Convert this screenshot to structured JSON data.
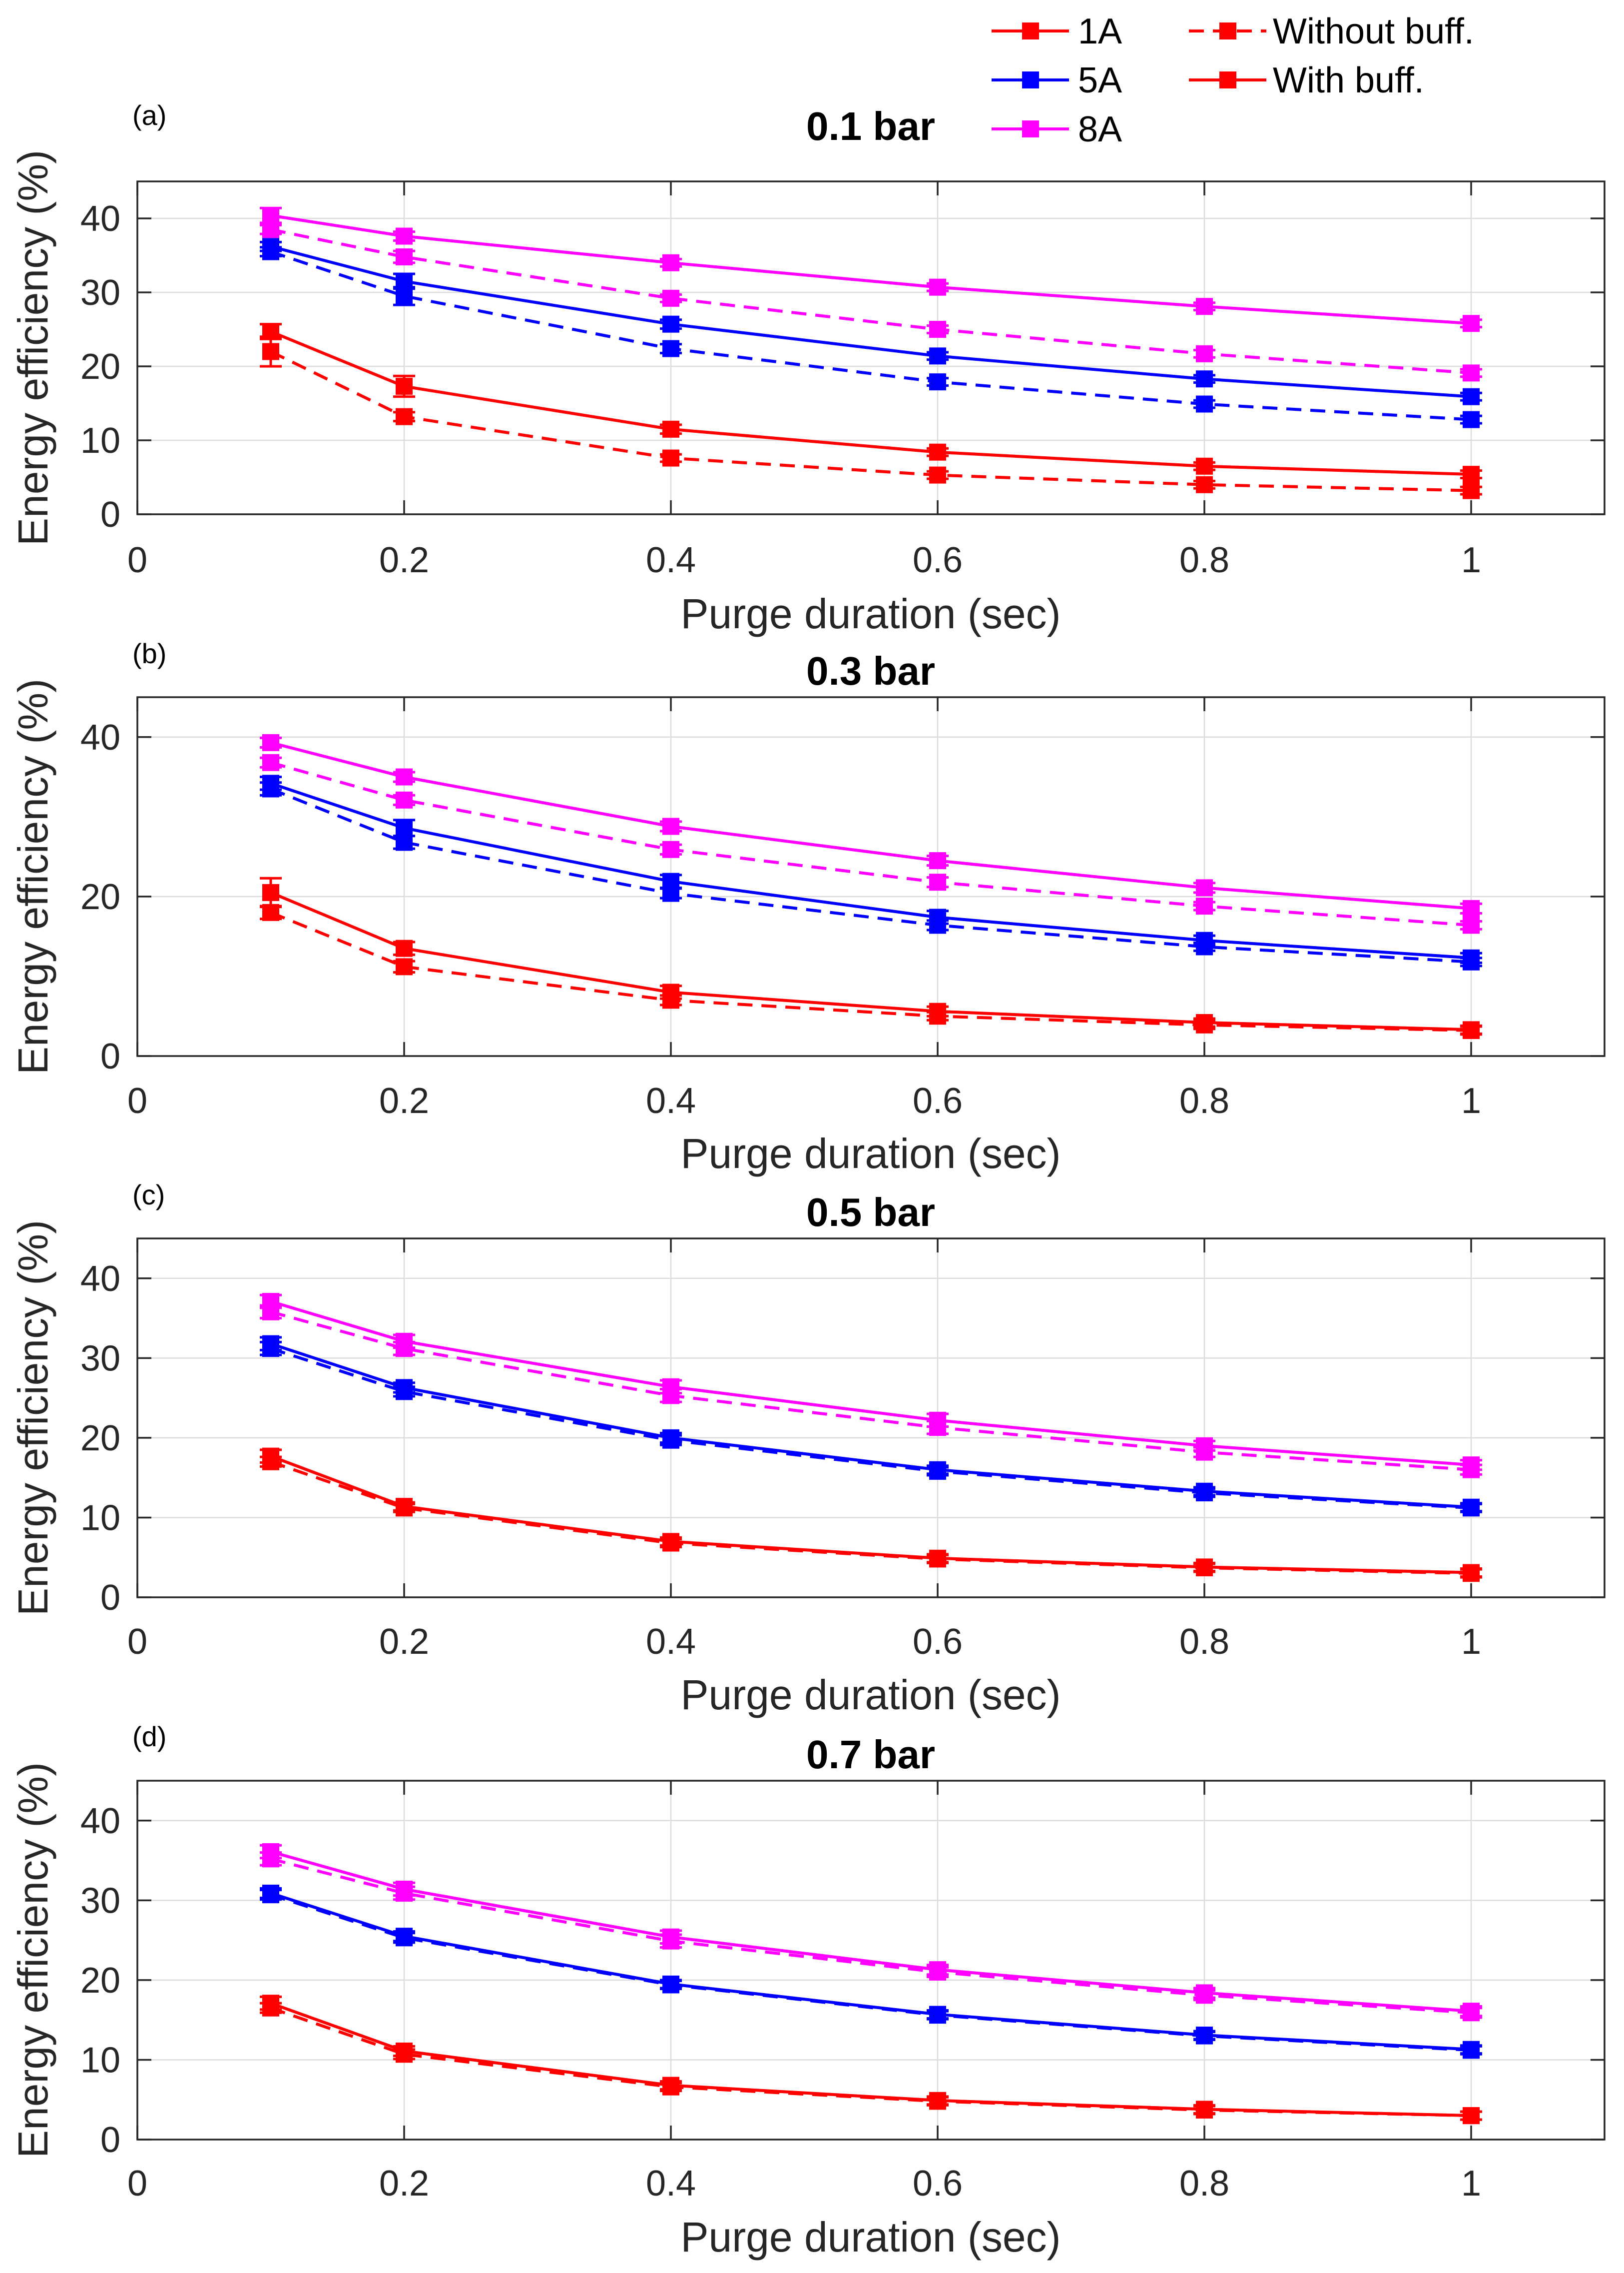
{
  "legend": {
    "current_entries": [
      {
        "label": "1A",
        "color": "#ff0000"
      },
      {
        "label": "5A",
        "color": "#0000ff"
      },
      {
        "label": "8A",
        "color": "#ff00ff"
      }
    ],
    "style_entries": [
      {
        "label": "Without buff.",
        "dash": true
      },
      {
        "label": "With buff.",
        "dash": false
      }
    ]
  },
  "chart_data": [
    {
      "type": "line",
      "panel_label": "(a)",
      "title": "0.1 bar",
      "xlabel": "Purge duration (sec)",
      "ylabel": "Energy efficiency (%)",
      "xlim": [
        0,
        1.1
      ],
      "ylim": [
        0,
        45
      ],
      "xticks": [
        0,
        0.2,
        0.4,
        0.6,
        0.8,
        1
      ],
      "xtick_labels": [
        "0",
        "0.2",
        "0.4",
        "0.6",
        "0.8",
        "1"
      ],
      "yticks": [
        0,
        10,
        20,
        30,
        40
      ],
      "ytick_labels": [
        "0",
        "10",
        "20",
        "30",
        "40"
      ],
      "grid": true,
      "x": [
        0.1,
        0.2,
        0.4,
        0.6,
        0.8,
        1.0
      ],
      "series": [
        {
          "name": "1A With buff.",
          "current": "1A",
          "buffer": "with",
          "color": "#ff0000",
          "values": [
            24.7,
            17.3,
            11.5,
            8.4,
            6.5,
            5.4
          ],
          "errors": [
            1.0,
            1.4,
            0.6,
            0.5,
            0.5,
            0.5
          ]
        },
        {
          "name": "1A Without buff.",
          "current": "1A",
          "buffer": "without",
          "color": "#ff0000",
          "values": [
            22.0,
            13.2,
            7.6,
            5.3,
            4.0,
            3.2
          ],
          "errors": [
            2.0,
            0.6,
            0.5,
            0.5,
            0.5,
            0.5
          ]
        },
        {
          "name": "5A With buff.",
          "current": "5A",
          "buffer": "with",
          "color": "#0000ff",
          "values": [
            36.2,
            31.5,
            25.7,
            21.4,
            18.3,
            15.9
          ],
          "errors": [
            0.6,
            1.0,
            0.6,
            0.5,
            0.5,
            0.5
          ]
        },
        {
          "name": "5A Without buff.",
          "current": "5A",
          "buffer": "without",
          "color": "#0000ff",
          "values": [
            35.5,
            29.5,
            22.4,
            17.9,
            14.9,
            12.8
          ],
          "errors": [
            0.6,
            1.2,
            0.6,
            0.5,
            0.5,
            0.5
          ]
        },
        {
          "name": "8A With buff.",
          "current": "8A",
          "buffer": "with",
          "color": "#ff00ff",
          "values": [
            40.4,
            37.6,
            34.0,
            30.7,
            28.1,
            25.8
          ],
          "errors": [
            1.0,
            0.6,
            0.5,
            0.5,
            0.5,
            0.5
          ]
        },
        {
          "name": "8A Without buff.",
          "current": "8A",
          "buffer": "without",
          "color": "#ff00ff",
          "values": [
            38.5,
            34.8,
            29.2,
            25.0,
            21.7,
            19.1
          ],
          "errors": [
            0.6,
            0.8,
            0.5,
            0.5,
            0.5,
            0.5
          ]
        }
      ]
    },
    {
      "type": "line",
      "panel_label": "(b)",
      "title": "0.3 bar",
      "xlabel": "Purge duration (sec)",
      "ylabel": "Energy efficiency (%)",
      "xlim": [
        0,
        1.1
      ],
      "ylim": [
        0,
        45
      ],
      "xticks": [
        0,
        0.2,
        0.4,
        0.6,
        0.8,
        1
      ],
      "xtick_labels": [
        "0",
        "0.2",
        "0.4",
        "0.6",
        "0.8",
        "1"
      ],
      "yticks": [
        0,
        20,
        40
      ],
      "ytick_labels": [
        "0",
        "20",
        "40"
      ],
      "grid": true,
      "x": [
        0.1,
        0.2,
        0.4,
        0.6,
        0.8,
        1.0
      ],
      "series": [
        {
          "name": "1A With buff.",
          "current": "1A",
          "buffer": "with",
          "color": "#ff0000",
          "values": [
            20.5,
            13.5,
            8.0,
            5.6,
            4.2,
            3.3
          ],
          "errors": [
            1.8,
            0.8,
            0.8,
            0.6,
            0.5,
            0.5
          ]
        },
        {
          "name": "1A Without buff.",
          "current": "1A",
          "buffer": "without",
          "color": "#ff0000",
          "values": [
            18.0,
            11.2,
            7.0,
            5.0,
            3.9,
            3.2
          ],
          "errors": [
            0.8,
            0.7,
            0.6,
            0.5,
            0.5,
            0.5
          ]
        },
        {
          "name": "5A With buff.",
          "current": "5A",
          "buffer": "with",
          "color": "#0000ff",
          "values": [
            34.2,
            28.6,
            21.9,
            17.4,
            14.5,
            12.3
          ],
          "errors": [
            0.8,
            1.0,
            0.8,
            0.8,
            0.6,
            0.6
          ]
        },
        {
          "name": "5A Without buff.",
          "current": "5A",
          "buffer": "without",
          "color": "#0000ff",
          "values": [
            33.5,
            26.8,
            20.4,
            16.4,
            13.7,
            11.8
          ],
          "errors": [
            0.8,
            0.8,
            0.6,
            0.6,
            0.5,
            0.5
          ]
        },
        {
          "name": "8A With buff.",
          "current": "8A",
          "buffer": "with",
          "color": "#ff00ff",
          "values": [
            39.3,
            35.0,
            28.8,
            24.5,
            21.1,
            18.5
          ],
          "errors": [
            0.6,
            0.6,
            0.6,
            0.6,
            0.6,
            0.6
          ]
        },
        {
          "name": "8A Without buff.",
          "current": "8A",
          "buffer": "without",
          "color": "#ff00ff",
          "values": [
            36.8,
            32.1,
            25.9,
            21.8,
            18.8,
            16.4
          ],
          "errors": [
            0.6,
            0.6,
            0.6,
            0.6,
            0.5,
            0.5
          ]
        }
      ]
    },
    {
      "type": "line",
      "panel_label": "(c)",
      "title": "0.5 bar",
      "xlabel": "Purge duration (sec)",
      "ylabel": "Energy efficiency (%)",
      "xlim": [
        0,
        1.1
      ],
      "ylim": [
        0,
        45
      ],
      "xticks": [
        0,
        0.2,
        0.4,
        0.6,
        0.8,
        1
      ],
      "xtick_labels": [
        "0",
        "0.2",
        "0.4",
        "0.6",
        "0.8",
        "1"
      ],
      "yticks": [
        0,
        10,
        20,
        30,
        40
      ],
      "ytick_labels": [
        "0",
        "10",
        "20",
        "30",
        "40"
      ],
      "grid": true,
      "x": [
        0.1,
        0.2,
        0.4,
        0.6,
        0.8,
        1.0
      ],
      "series": [
        {
          "name": "1A With buff.",
          "current": "1A",
          "buffer": "with",
          "color": "#ff0000",
          "values": [
            17.7,
            11.4,
            7.0,
            4.9,
            3.8,
            3.1
          ],
          "errors": [
            0.8,
            0.5,
            0.5,
            0.5,
            0.5,
            0.5
          ]
        },
        {
          "name": "1A Without buff.",
          "current": "1A",
          "buffer": "without",
          "color": "#ff0000",
          "values": [
            17.0,
            11.2,
            6.8,
            4.8,
            3.7,
            3.0
          ],
          "errors": [
            0.6,
            0.5,
            0.5,
            0.5,
            0.5,
            0.5
          ]
        },
        {
          "name": "5A With buff.",
          "current": "5A",
          "buffer": "with",
          "color": "#0000ff",
          "values": [
            31.8,
            26.3,
            20.0,
            16.0,
            13.3,
            11.3
          ],
          "errors": [
            0.8,
            0.6,
            0.6,
            0.5,
            0.5,
            0.5
          ]
        },
        {
          "name": "5A Without buff.",
          "current": "5A",
          "buffer": "without",
          "color": "#0000ff",
          "values": [
            31.2,
            25.8,
            19.7,
            15.8,
            13.1,
            11.2
          ],
          "errors": [
            0.8,
            0.6,
            0.6,
            0.5,
            0.5,
            0.5
          ]
        },
        {
          "name": "8A With buff.",
          "current": "8A",
          "buffer": "with",
          "color": "#ff00ff",
          "values": [
            37.1,
            32.1,
            26.4,
            22.2,
            19.0,
            16.6
          ],
          "errors": [
            0.8,
            0.8,
            0.8,
            0.8,
            0.6,
            0.6
          ]
        },
        {
          "name": "8A Without buff.",
          "current": "8A",
          "buffer": "without",
          "color": "#ff00ff",
          "values": [
            35.8,
            31.2,
            25.3,
            21.3,
            18.2,
            16.0
          ],
          "errors": [
            0.8,
            0.8,
            0.8,
            0.8,
            0.6,
            0.6
          ]
        }
      ]
    },
    {
      "type": "line",
      "panel_label": "(d)",
      "title": "0.7 bar",
      "xlabel": "Purge duration (sec)",
      "ylabel": "Energy efficiency (%)",
      "xlim": [
        0,
        1.1
      ],
      "ylim": [
        0,
        45
      ],
      "xticks": [
        0,
        0.2,
        0.4,
        0.6,
        0.8,
        1
      ],
      "xtick_labels": [
        "0",
        "0.2",
        "0.4",
        "0.6",
        "0.8",
        "1"
      ],
      "yticks": [
        0,
        10,
        20,
        30,
        40
      ],
      "ytick_labels": [
        "0",
        "10",
        "20",
        "30",
        "40"
      ],
      "grid": true,
      "x": [
        0.1,
        0.2,
        0.4,
        0.6,
        0.8,
        1.0
      ],
      "series": [
        {
          "name": "1A With buff.",
          "current": "1A",
          "buffer": "with",
          "color": "#ff0000",
          "values": [
            17.1,
            11.1,
            6.8,
            4.9,
            3.8,
            3.0
          ],
          "errors": [
            0.8,
            0.6,
            0.5,
            0.5,
            0.5,
            0.5
          ]
        },
        {
          "name": "1A Without buff.",
          "current": "1A",
          "buffer": "without",
          "color": "#ff0000",
          "values": [
            16.5,
            10.7,
            6.6,
            4.8,
            3.7,
            3.0
          ],
          "errors": [
            0.6,
            0.6,
            0.5,
            0.5,
            0.5,
            0.5
          ]
        },
        {
          "name": "5A With buff.",
          "current": "5A",
          "buffer": "with",
          "color": "#0000ff",
          "values": [
            30.9,
            25.5,
            19.5,
            15.7,
            13.1,
            11.3
          ],
          "errors": [
            0.6,
            0.6,
            0.5,
            0.5,
            0.5,
            0.5
          ]
        },
        {
          "name": "5A Without buff.",
          "current": "5A",
          "buffer": "without",
          "color": "#0000ff",
          "values": [
            30.7,
            25.3,
            19.4,
            15.6,
            13.0,
            11.2
          ],
          "errors": [
            0.6,
            0.6,
            0.5,
            0.5,
            0.5,
            0.5
          ]
        },
        {
          "name": "8A With buff.",
          "current": "8A",
          "buffer": "with",
          "color": "#ff00ff",
          "values": [
            36.1,
            31.4,
            25.4,
            21.3,
            18.4,
            16.1
          ],
          "errors": [
            0.8,
            0.8,
            0.8,
            0.6,
            0.6,
            0.6
          ]
        },
        {
          "name": "8A Without buff.",
          "current": "8A",
          "buffer": "without",
          "color": "#ff00ff",
          "values": [
            35.2,
            30.9,
            24.9,
            21.0,
            18.1,
            15.9
          ],
          "errors": [
            0.8,
            0.8,
            0.8,
            0.6,
            0.6,
            0.6
          ]
        }
      ]
    }
  ]
}
